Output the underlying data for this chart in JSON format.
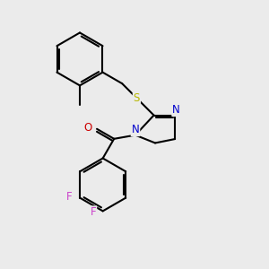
{
  "background_color": "#ebebeb",
  "bond_color": "#000000",
  "sulfur_color": "#b8b800",
  "nitrogen_color": "#0000cc",
  "oxygen_color": "#cc0000",
  "fluorine_color": "#cc44cc",
  "line_width": 1.5,
  "figsize": [
    3.0,
    3.0
  ],
  "dpi": 100,
  "xlim": [
    0,
    10
  ],
  "ylim": [
    0,
    10
  ]
}
